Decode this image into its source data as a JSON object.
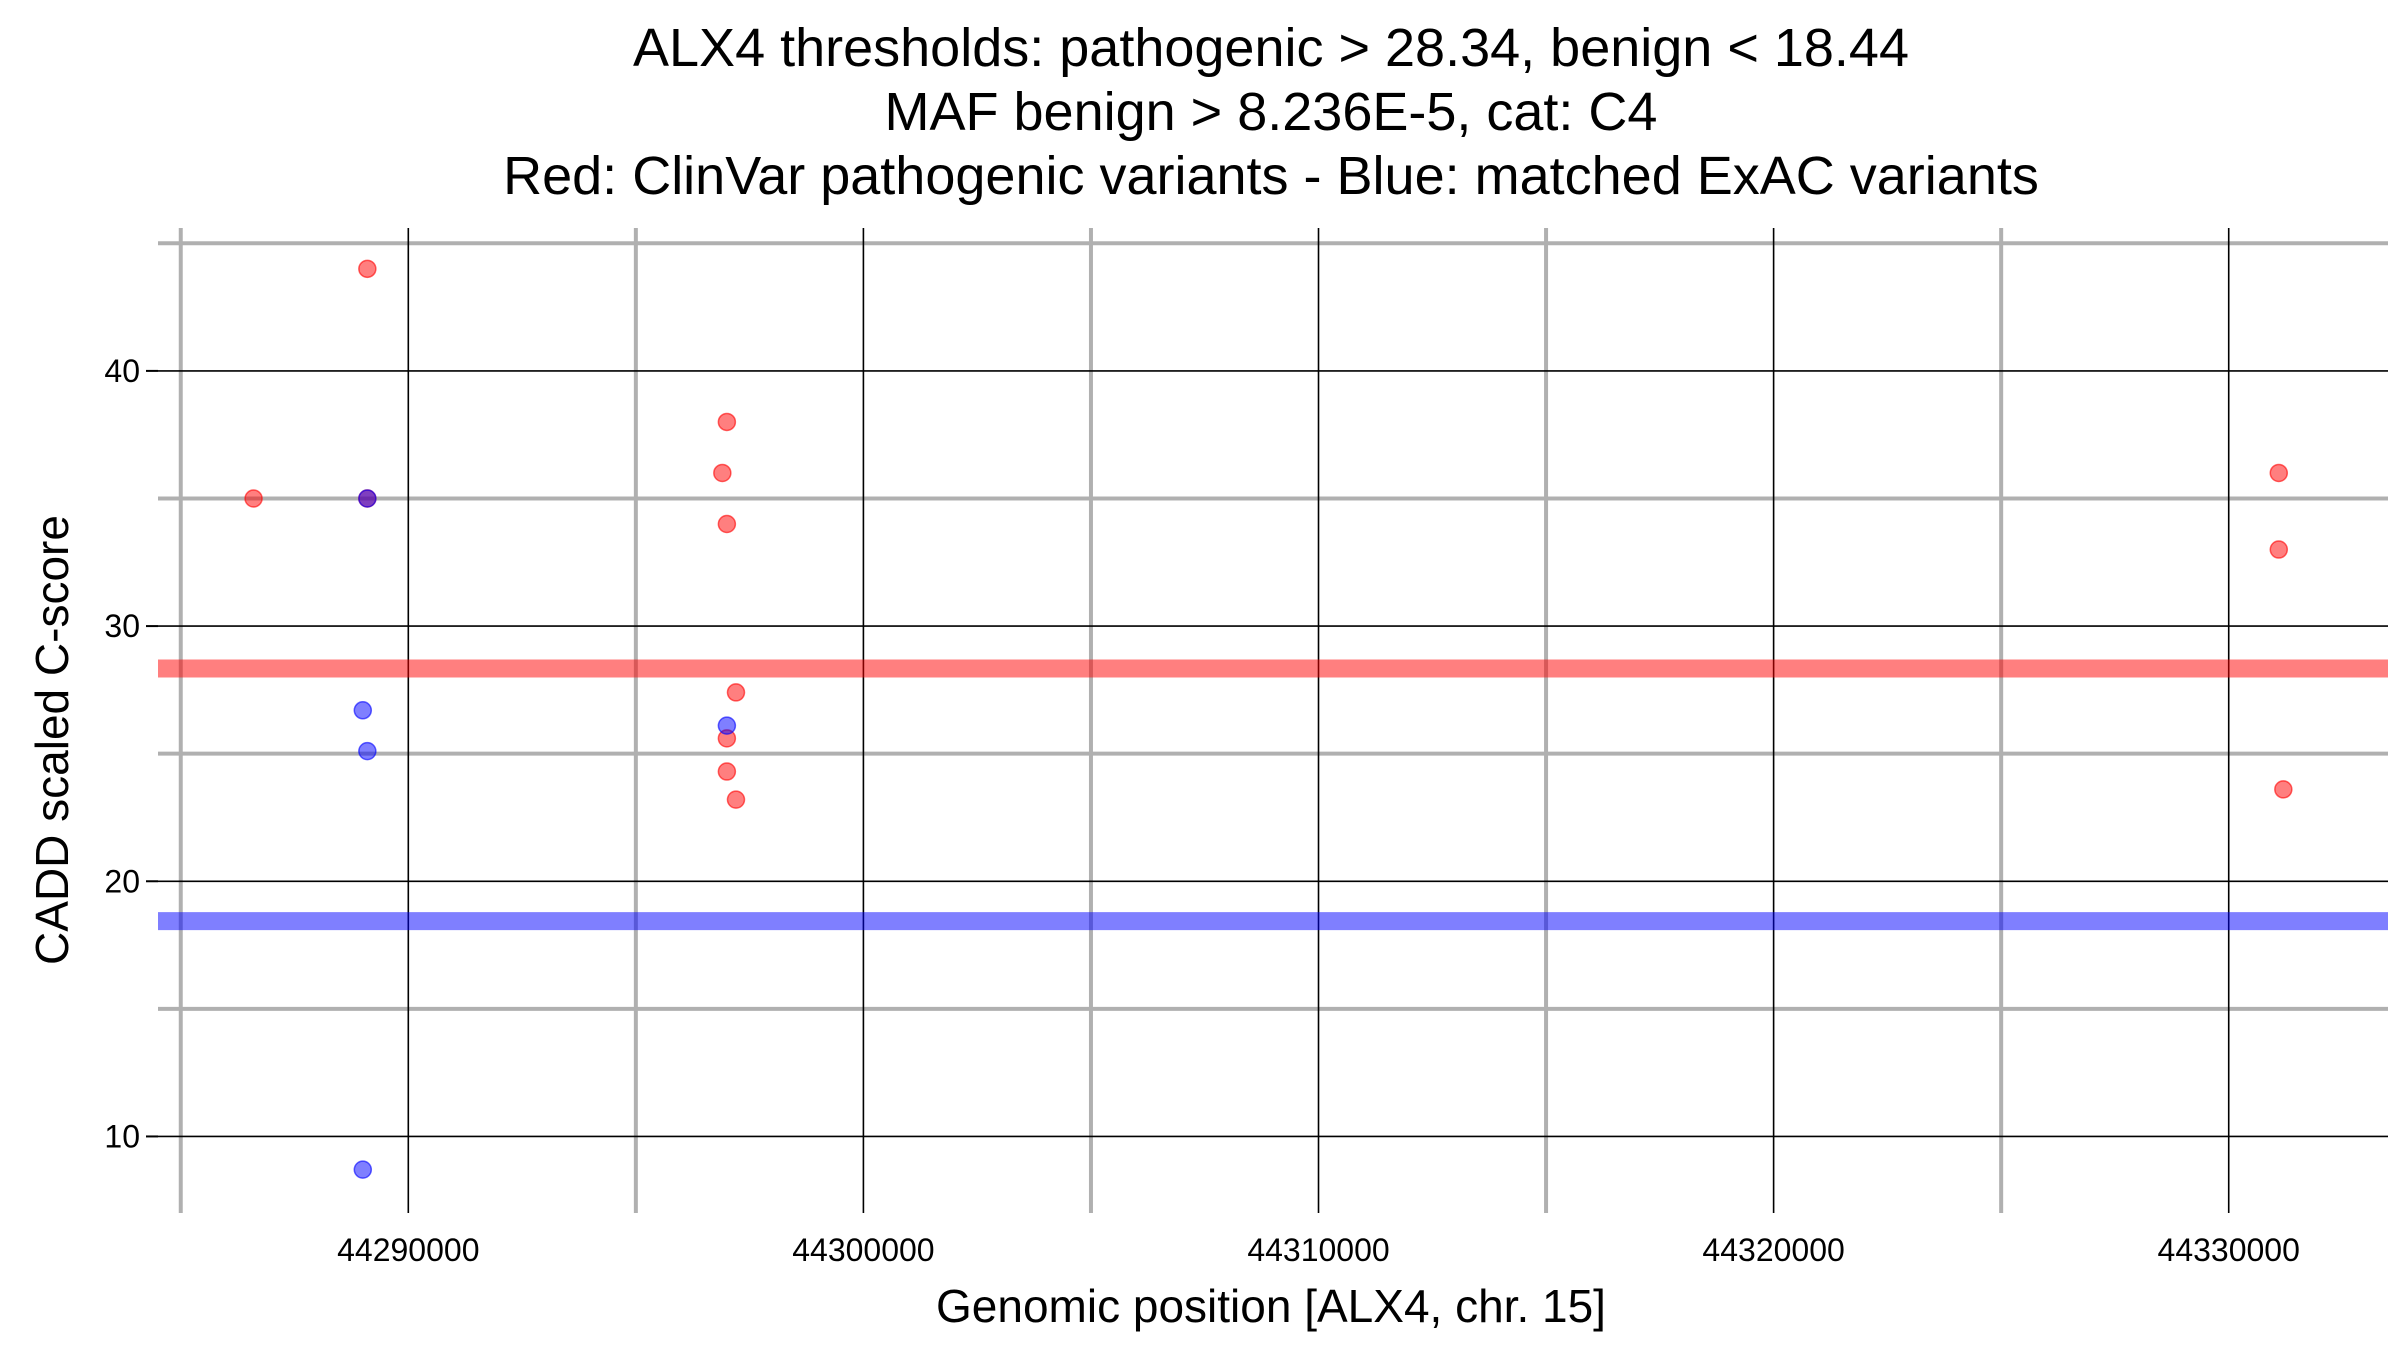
{
  "chart_data": {
    "type": "scatter",
    "title_lines": [
      "ALX4 thresholds: pathogenic > 28.34, benign < 18.44",
      "MAF benign > 8.236E-5, cat: C4",
      "Red: ClinVar pathogenic variants - Blue: matched ExAC variants"
    ],
    "xlabel": "Genomic position [ALX4, chr. 15]",
    "ylabel": "CADD scaled C-score",
    "xlim": [
      44284500,
      44333500
    ],
    "ylim": [
      7,
      45.6
    ],
    "x_ticks": [
      44290000,
      44300000,
      44310000,
      44320000,
      44330000
    ],
    "x_tick_labels": [
      "44290000",
      "44300000",
      "44310000",
      "44320000",
      "44330000"
    ],
    "x_minor_ticks": [
      44285000,
      44295000,
      44305000,
      44315000,
      44325000
    ],
    "y_ticks": [
      10,
      20,
      30,
      40
    ],
    "y_tick_labels": [
      "10",
      "20",
      "30",
      "40"
    ],
    "y_minor_ticks": [
      15,
      25,
      35,
      45
    ],
    "grid": true,
    "thresholds": [
      {
        "name": "pathogenic",
        "value": 28.34,
        "color": "#ff0000"
      },
      {
        "name": "benign",
        "value": 18.44,
        "color": "#0000ff"
      }
    ],
    "series": [
      {
        "name": "ClinVar pathogenic variants",
        "color": "#ff0000",
        "points": [
          {
            "x": 44286600,
            "y": 35.0
          },
          {
            "x": 44289100,
            "y": 44.0
          },
          {
            "x": 44289100,
            "y": 35.0
          },
          {
            "x": 44297000,
            "y": 38.0
          },
          {
            "x": 44296900,
            "y": 36.0
          },
          {
            "x": 44297000,
            "y": 34.0
          },
          {
            "x": 44297200,
            "y": 27.4
          },
          {
            "x": 44297000,
            "y": 25.6
          },
          {
            "x": 44297000,
            "y": 24.3
          },
          {
            "x": 44297200,
            "y": 23.2
          },
          {
            "x": 44331100,
            "y": 36.0
          },
          {
            "x": 44331100,
            "y": 33.0
          },
          {
            "x": 44331200,
            "y": 23.6
          }
        ]
      },
      {
        "name": "matched ExAC variants",
        "color": "#0000ff",
        "points": [
          {
            "x": 44289100,
            "y": 35.0
          },
          {
            "x": 44289000,
            "y": 26.7
          },
          {
            "x": 44289100,
            "y": 25.1
          },
          {
            "x": 44297000,
            "y": 26.1
          },
          {
            "x": 44289000,
            "y": 8.7
          }
        ]
      }
    ]
  }
}
